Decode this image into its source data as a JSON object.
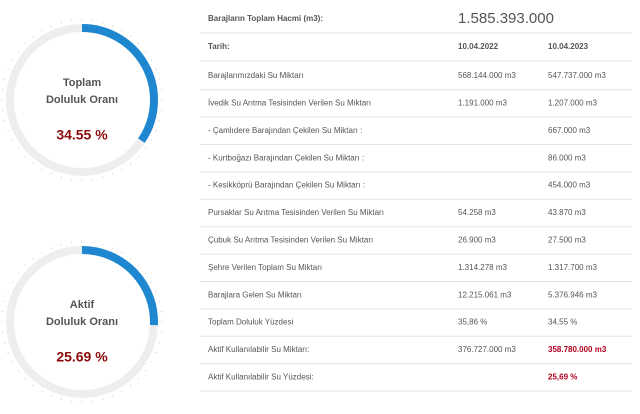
{
  "gauges": [
    {
      "title_line1": "Toplam",
      "title_line2": "Doluluk Oranı",
      "value": 34.55,
      "value_label": "34.55 %"
    },
    {
      "title_line1": "Aktif",
      "title_line2": "Doluluk Oranı",
      "value": 25.69,
      "value_label": "25.69 %"
    }
  ],
  "table": {
    "header": {
      "label": "Barajların Toplam Hacmi (m3):",
      "value": "1.585.393.000"
    },
    "columns": [
      "Tarih:",
      "10.04.2022",
      "10.04.2023"
    ],
    "rows": [
      [
        "Barajlarımızdaki Su Miktarı",
        "568.144.000 m3",
        "547.737.000 m3"
      ],
      [
        "İvedik Su Arıtma Tesisinden Verilen Su Miktarı",
        "1.191.000 m3",
        "1.207.000 m3"
      ],
      [
        "- Çamlıdere Barajından Çekilen Su Miktarı :",
        null,
        "667.000 m3"
      ],
      [
        "- Kurtboğazı Barajından Çekilen Su Miktarı :",
        null,
        "86.000 m3"
      ],
      [
        "- Kesikköprü Barajından Çekilen Su Miktarı :",
        null,
        "454.000 m3"
      ],
      [
        "Pursaklar Su Arıtma Tesisinden Verilen Su Miktarı",
        "54.258 m3",
        "43.870 m3"
      ],
      [
        "Çubuk Su Arıtma Tesisinden Verilen Su Miktarı",
        "26.900 m3",
        "27.500 m3"
      ],
      [
        "Şehre Verilen Toplam Su Miktarı",
        "1.314.278 m3",
        "1.317.700 m3"
      ],
      [
        "Barajlara Gelen Su Miktarı",
        "12.215.061 m3",
        "5.376.946 m3"
      ],
      [
        "Toplam Doluluk Yüzdesi",
        "35,86 %",
        "34,55 %"
      ],
      [
        "Aktif Kullanılabilir Su Miktarı:",
        "376.727.000 m3",
        "358.780.000 m3"
      ],
      [
        "Aktif Kullanılabilir Su Yüzdesi:",
        null,
        "25,69 %"
      ]
    ],
    "emphasized_rows": [
      10,
      11
    ]
  }
}
